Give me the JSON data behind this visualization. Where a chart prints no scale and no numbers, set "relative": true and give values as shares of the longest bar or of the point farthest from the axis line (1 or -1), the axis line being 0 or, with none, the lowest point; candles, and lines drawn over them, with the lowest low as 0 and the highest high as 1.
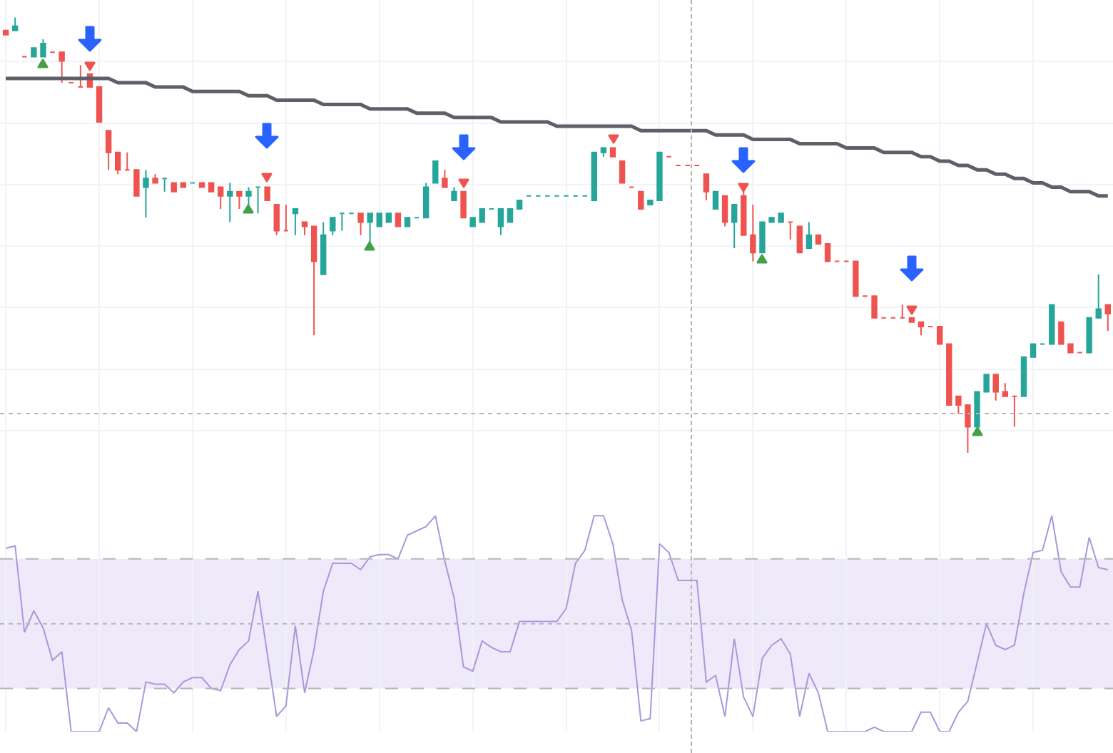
{
  "chart_data": [
    {
      "type": "candlestick",
      "relative": true,
      "grid": true,
      "categories": [
        null,
        null,
        null,
        null,
        null,
        null,
        null,
        null,
        null,
        null,
        null,
        null,
        null,
        null,
        null,
        null,
        null,
        null,
        null,
        null,
        null,
        null,
        null,
        null,
        null,
        null,
        null,
        null,
        null,
        null,
        null,
        null,
        null,
        null,
        null,
        null,
        null,
        null,
        null,
        null,
        null,
        null,
        null,
        null,
        null,
        null,
        null,
        null,
        null,
        null,
        null,
        null,
        null,
        null,
        null,
        null,
        null,
        null,
        null,
        null,
        null,
        null,
        null,
        null,
        null,
        null,
        null,
        null,
        null,
        null,
        null,
        null,
        null,
        null,
        null,
        null,
        null,
        null,
        null,
        null,
        null,
        null,
        null,
        null,
        null,
        null,
        null,
        null,
        null,
        null,
        null,
        null,
        null,
        null,
        null,
        null,
        null,
        null,
        null,
        null,
        null,
        null,
        null,
        null,
        null,
        null,
        null,
        null,
        null,
        null,
        null,
        null,
        null,
        null,
        null,
        null,
        null,
        null,
        null
      ],
      "ohlc": [
        [
          0.97,
          0.97,
          0.96,
          0.96
        ],
        [
          0.97,
          1,
          0.97,
          0.98
        ],
        [
          0.91,
          0.91,
          0.91,
          0.91
        ],
        [
          0.91,
          0.93,
          0.91,
          0.93
        ],
        [
          0.91,
          0.95,
          0.91,
          0.94
        ],
        [
          0.92,
          0.92,
          0.92,
          0.92
        ],
        [
          0.92,
          0.92,
          0.85,
          0.9
        ],
        [
          0.85,
          0.85,
          0.85,
          0.85
        ],
        [
          0.84,
          0.89,
          0.84,
          0.84
        ],
        [
          0.87,
          0.87,
          0.84,
          0.84
        ],
        [
          0.84,
          0.84,
          0.76,
          0.76
        ],
        [
          0.74,
          0.74,
          0.65,
          0.69
        ],
        [
          0.69,
          0.69,
          0.64,
          0.65
        ],
        [
          0.65,
          0.69,
          0.65,
          0.65
        ],
        [
          0.65,
          0.65,
          0.59,
          0.59
        ],
        [
          0.61,
          0.65,
          0.54,
          0.63
        ],
        [
          0.63,
          0.64,
          0.62,
          0.62
        ],
        [
          0.63,
          0.63,
          0.6,
          0.63
        ],
        [
          0.62,
          0.62,
          0.6,
          0.6
        ],
        [
          0.62,
          0.62,
          0.61,
          0.61
        ],
        [
          0.62,
          0.62,
          0.62,
          0.62
        ],
        [
          0.62,
          0.62,
          0.61,
          0.61
        ],
        [
          0.62,
          0.62,
          0.6,
          0.6
        ],
        [
          0.61,
          0.61,
          0.56,
          0.59
        ],
        [
          0.59,
          0.62,
          0.53,
          0.6
        ],
        [
          0.6,
          0.6,
          0.56,
          0.59
        ],
        [
          0.59,
          0.61,
          0.57,
          0.6
        ],
        [
          0.61,
          0.61,
          0.55,
          0.61
        ],
        [
          0.61,
          0.61,
          0.58,
          0.58
        ],
        [
          0.57,
          0.57,
          0.5,
          0.51
        ],
        [
          0.51,
          0.57,
          0.51,
          0.51
        ],
        [
          0.55,
          0.56,
          0.5,
          0.56
        ],
        [
          0.53,
          0.53,
          0.5,
          0.52
        ],
        [
          0.52,
          0.52,
          0.27,
          0.44
        ],
        [
          0.41,
          0.53,
          0.41,
          0.5
        ],
        [
          0.51,
          0.54,
          0.5,
          0.54
        ],
        [
          0.55,
          0.55,
          0.51,
          0.55
        ],
        [
          0.55,
          0.55,
          0.55,
          0.55
        ],
        [
          0.55,
          0.55,
          0.5,
          0.53
        ],
        [
          0.53,
          0.55,
          0.48,
          0.55
        ],
        [
          0.52,
          0.55,
          0.52,
          0.55
        ],
        [
          0.53,
          0.55,
          0.53,
          0.55
        ],
        [
          0.55,
          0.55,
          0.52,
          0.52
        ],
        [
          0.52,
          0.54,
          0.52,
          0.54
        ],
        [
          0.54,
          0.54,
          0.54,
          0.54
        ],
        [
          0.54,
          0.62,
          0.54,
          0.61
        ],
        [
          0.62,
          0.67,
          0.62,
          0.67
        ],
        [
          0.63,
          0.65,
          0.61,
          0.61
        ],
        [
          0.58,
          0.61,
          0.58,
          0.6
        ],
        [
          0.6,
          0.6,
          0.54,
          0.54
        ],
        [
          0.52,
          0.54,
          0.52,
          0.54
        ],
        [
          0.53,
          0.56,
          0.53,
          0.56
        ],
        [
          0.56,
          0.56,
          0.56,
          0.56
        ],
        [
          0.52,
          0.56,
          0.5,
          0.56
        ],
        [
          0.53,
          0.56,
          0.53,
          0.56
        ],
        [
          0.56,
          0.58,
          0.56,
          0.58
        ],
        [
          0.59,
          0.59,
          0.59,
          0.59
        ],
        [
          0.59,
          0.59,
          0.59,
          0.59
        ],
        [
          0.59,
          0.59,
          0.59,
          0.59
        ],
        [
          0.59,
          0.59,
          0.59,
          0.59
        ],
        [
          0.59,
          0.59,
          0.59,
          0.59
        ],
        [
          0.59,
          0.59,
          0.59,
          0.59
        ],
        [
          0.59,
          0.59,
          0.59,
          0.59
        ],
        [
          0.58,
          0.69,
          0.58,
          0.69
        ],
        [
          0.69,
          0.7,
          0.68,
          0.7
        ],
        [
          0.7,
          0.7,
          0.68,
          0.68
        ],
        [
          0.67,
          0.67,
          0.62,
          0.62
        ],
        [
          0.61,
          0.61,
          0.61,
          0.61
        ],
        [
          0.6,
          0.6,
          0.56,
          0.56
        ],
        [
          0.57,
          0.58,
          0.57,
          0.58
        ],
        [
          0.58,
          0.69,
          0.58,
          0.69
        ],
        [
          0.68,
          0.68,
          0.68,
          0.68
        ],
        [
          0.66,
          0.66,
          0.66,
          0.66
        ],
        [
          0.66,
          0.66,
          0.66,
          0.66
        ],
        [
          0.66,
          0.66,
          0.66,
          0.66
        ],
        [
          0.64,
          0.64,
          0.58,
          0.6
        ],
        [
          0.56,
          0.6,
          0.56,
          0.6
        ],
        [
          0.59,
          0.59,
          0.52,
          0.53
        ],
        [
          0.53,
          0.57,
          0.47,
          0.57
        ],
        [
          0.59,
          0.6,
          0.5,
          0.5
        ],
        [
          0.5,
          0.57,
          0.44,
          0.46
        ],
        [
          0.46,
          0.53,
          0.46,
          0.53
        ],
        [
          0.53,
          0.54,
          0.53,
          0.54
        ],
        [
          0.53,
          0.55,
          0.53,
          0.55
        ],
        [
          0.53,
          0.53,
          0.49,
          0.53
        ],
        [
          0.52,
          0.52,
          0.46,
          0.46
        ],
        [
          0.47,
          0.53,
          0.47,
          0.5
        ],
        [
          0.5,
          0.5,
          0.48,
          0.48
        ],
        [
          0.48,
          0.48,
          0.44,
          0.44
        ],
        [
          0.44,
          0.44,
          0.44,
          0.44
        ],
        [
          0.44,
          0.44,
          0.44,
          0.44
        ],
        [
          0.44,
          0.44,
          0.36,
          0.36
        ],
        [
          0.36,
          0.36,
          0.36,
          0.36
        ],
        [
          0.36,
          0.36,
          0.31,
          0.31
        ],
        [
          0.31,
          0.31,
          0.31,
          0.31
        ],
        [
          0.31,
          0.31,
          0.31,
          0.31
        ],
        [
          0.31,
          0.34,
          0.31,
          0.31
        ],
        [
          0.31,
          0.31,
          0.3,
          0.3
        ],
        [
          0.3,
          0.3,
          0.27,
          0.29
        ],
        [
          0.29,
          0.29,
          0.29,
          0.29
        ],
        [
          0.29,
          0.29,
          0.25,
          0.25
        ],
        [
          0.25,
          0.25,
          0.11,
          0.11
        ],
        [
          0.13,
          0.13,
          0.09,
          0.11
        ],
        [
          0.11,
          0.11,
          0,
          0.06
        ],
        [
          0.06,
          0.14,
          0.06,
          0.14
        ],
        [
          0.14,
          0.18,
          0.14,
          0.18
        ],
        [
          0.18,
          0.18,
          0.12,
          0.14
        ],
        [
          0.14,
          0.16,
          0.13,
          0.13
        ],
        [
          0.13,
          0.13,
          0.06,
          0.13
        ],
        [
          0.13,
          0.22,
          0.13,
          0.22
        ],
        [
          0.22,
          0.25,
          0.22,
          0.25
        ],
        [
          0.25,
          0.25,
          0.25,
          0.25
        ],
        [
          0.25,
          0.34,
          0.25,
          0.34
        ],
        [
          0.3,
          0.3,
          0.25,
          0.25
        ],
        [
          0.25,
          0.25,
          0.23,
          0.23
        ],
        [
          0.23,
          0.23,
          0.23,
          0.23
        ],
        [
          0.23,
          0.31,
          0.23,
          0.31
        ],
        [
          0.31,
          0.41,
          0.31,
          0.33
        ],
        [
          0.34,
          0.34,
          0.28,
          0.32
        ]
      ],
      "series": [
        {
          "type": "line",
          "color": "#5f5f68",
          "values": [
            0.86,
            0.86,
            0.86,
            0.86,
            0.86,
            0.86,
            0.86,
            0.86,
            0.86,
            0.86,
            0.86,
            0.86,
            0.85,
            0.85,
            0.85,
            0.85,
            0.84,
            0.84,
            0.84,
            0.84,
            0.83,
            0.83,
            0.83,
            0.83,
            0.83,
            0.83,
            0.82,
            0.82,
            0.82,
            0.81,
            0.81,
            0.81,
            0.81,
            0.81,
            0.8,
            0.8,
            0.8,
            0.8,
            0.8,
            0.79,
            0.79,
            0.79,
            0.79,
            0.79,
            0.78,
            0.78,
            0.78,
            0.78,
            0.77,
            0.77,
            0.77,
            0.77,
            0.77,
            0.76,
            0.76,
            0.76,
            0.76,
            0.76,
            0.76,
            0.75,
            0.75,
            0.75,
            0.75,
            0.75,
            0.75,
            0.75,
            0.75,
            0.75,
            0.74,
            0.74,
            0.74,
            0.74,
            0.74,
            0.74,
            0.74,
            0.74,
            0.73,
            0.73,
            0.73,
            0.73,
            0.72,
            0.72,
            0.72,
            0.72,
            0.72,
            0.71,
            0.71,
            0.71,
            0.71,
            0.71,
            0.7,
            0.7,
            0.7,
            0.7,
            0.69,
            0.69,
            0.69,
            0.69,
            0.68,
            0.68,
            0.67,
            0.67,
            0.66,
            0.66,
            0.65,
            0.65,
            0.64,
            0.64,
            0.63,
            0.63,
            0.62,
            0.62,
            0.61,
            0.61,
            0.6,
            0.6,
            0.6,
            0.59,
            0.59
          ]
        }
      ],
      "ref_lines": [
        {
          "axis": "y",
          "value": 0.09,
          "line_style": "dotted"
        }
      ]
    },
    {
      "type": "line",
      "relative": true,
      "grid": "x",
      "categories": [
        null,
        null,
        null,
        null,
        null,
        null,
        null,
        null,
        null,
        null,
        null,
        null,
        null,
        null,
        null,
        null,
        null,
        null,
        null,
        null,
        null,
        null,
        null,
        null,
        null,
        null,
        null,
        null,
        null,
        null,
        null,
        null,
        null,
        null,
        null,
        null,
        null,
        null,
        null,
        null,
        null,
        null,
        null,
        null,
        null,
        null,
        null,
        null,
        null,
        null,
        null,
        null,
        null,
        null,
        null,
        null,
        null,
        null,
        null,
        null,
        null,
        null,
        null,
        null,
        null,
        null,
        null,
        null,
        null,
        null,
        null,
        null,
        null,
        null,
        null,
        null,
        null,
        null,
        null,
        null,
        null,
        null,
        null,
        null,
        null,
        null,
        null,
        null,
        null,
        null,
        null,
        null,
        null,
        null,
        null,
        null,
        null,
        null,
        null,
        null,
        null,
        null,
        null,
        null,
        null,
        null,
        null,
        null,
        null,
        null,
        null,
        null,
        null,
        null,
        null,
        null,
        null,
        null,
        null
      ],
      "series": [
        {
          "color": "#a898dc",
          "values": [
            0.85,
            0.86,
            0.46,
            0.56,
            0.48,
            0.33,
            0.37,
            0,
            0,
            0,
            0,
            0.11,
            0.04,
            0.04,
            0,
            0.23,
            0.22,
            0.22,
            0.18,
            0.23,
            0.25,
            0.25,
            0.2,
            0.19,
            0.31,
            0.38,
            0.42,
            0.65,
            0.36,
            0.07,
            0.12,
            0.49,
            0.18,
            0.38,
            0.65,
            0.78,
            0.78,
            0.78,
            0.75,
            0.81,
            0.82,
            0.82,
            0.8,
            0.91,
            0.93,
            0.95,
            1,
            0.79,
            0.62,
            0.3,
            0.28,
            0.42,
            0.39,
            0.37,
            0.37,
            0.51,
            0.51,
            0.51,
            0.51,
            0.51,
            0.57,
            0.78,
            0.84,
            1,
            1,
            0.87,
            0.61,
            0.47,
            0.05,
            0.06,
            0.87,
            0.83,
            0.7,
            0.7,
            0.7,
            0.23,
            0.26,
            0.07,
            0.43,
            0.16,
            0.07,
            0.34,
            0.4,
            0.43,
            0.36,
            0.07,
            0.27,
            0.18,
            0,
            0,
            0,
            0,
            0,
            0.02,
            0,
            0,
            0,
            0,
            0.09,
            0.09,
            0,
            0,
            0.09,
            0.14,
            0.32,
            0.5,
            0.4,
            0.38,
            0.4,
            0.64,
            0.83,
            0.84,
            1,
            0.74,
            0.67,
            0.67,
            0.9,
            0.76,
            0.75
          ]
        }
      ],
      "bands": [
        {
          "axis": "y",
          "from": 0.2,
          "to": 0.8,
          "color": "#efeaf9"
        }
      ],
      "ref_lines": [
        {
          "axis": "y",
          "value": 0.2,
          "line_style": "dashed"
        },
        {
          "axis": "y",
          "value": 0.8,
          "line_style": "dashed"
        },
        {
          "axis": "y",
          "value": 0.5,
          "line_style": "dotted"
        }
      ]
    }
  ]
}
